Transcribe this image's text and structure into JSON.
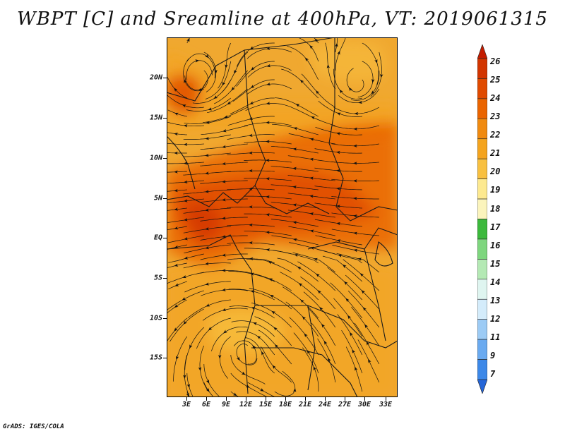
{
  "title": "WBPT [C] and Sreamline at 400hPa, VT: 2019061315",
  "credit": "GrADS: IGES/COLA",
  "map": {
    "lat_labels": [
      "20N",
      "15N",
      "10N",
      "5N",
      "EQ",
      "5S",
      "10S",
      "15S"
    ],
    "lon_labels": [
      "3E",
      "6E",
      "9E",
      "12E",
      "15E",
      "18E",
      "21E",
      "24E",
      "27E",
      "30E",
      "33E"
    ],
    "lat_range": [
      -20,
      24
    ],
    "lon_range": [
      0,
      35
    ],
    "base_color": "#f0a830"
  },
  "colorbar": {
    "labels": [
      "26",
      "25",
      "24",
      "23",
      "22",
      "21",
      "20",
      "19",
      "18",
      "17",
      "16",
      "15",
      "14",
      "13",
      "12",
      "11",
      "9",
      "7"
    ],
    "colors": [
      "#c41c00",
      "#d23500",
      "#e04a00",
      "#ea6400",
      "#f08a10",
      "#f4a41e",
      "#f8c040",
      "#fde98f",
      "#fbf4bc",
      "#3cb93c",
      "#7ed67e",
      "#b4e9b4",
      "#dff5f0",
      "#d4ecfb",
      "#9ccbf5",
      "#6aaaf0",
      "#3c88e8",
      "#2566d8"
    ]
  }
}
